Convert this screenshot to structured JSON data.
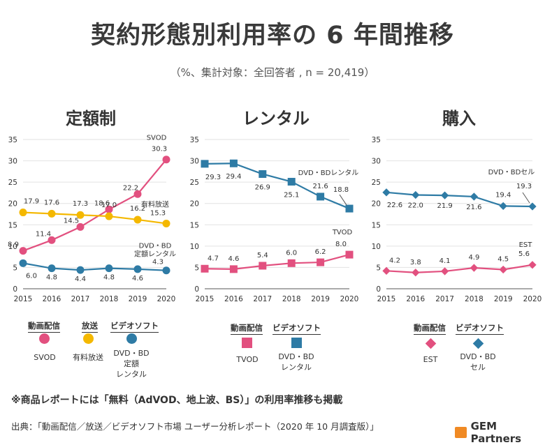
{
  "title": "契約形態別利用率の 6 年間推移",
  "subtitle": "（%、集計対象：全回答者 , n = 20,419）",
  "colors": {
    "pink": "#e2507f",
    "yellow": "#f4b800",
    "blue": "#2e7ba5"
  },
  "chart_data": [
    {
      "type": "line",
      "title": "定額制",
      "categories": [
        "2015",
        "2016",
        "2017",
        "2018",
        "2019",
        "2020"
      ],
      "ylim": [
        0,
        35
      ],
      "yticks": [
        "0",
        "5",
        "10",
        "15",
        "20",
        "25",
        "30",
        "35"
      ],
      "series": [
        {
          "name": "SVOD",
          "color": "#e2507f",
          "marker": "circle",
          "values": [
            8.9,
            11.4,
            14.5,
            18.6,
            22.2,
            30.3
          ],
          "labels": [
            "8.9",
            "11.4",
            "14.5",
            "18.6",
            "22.2",
            "30.3"
          ],
          "end_label": "SVOD"
        },
        {
          "name": "有料放送",
          "color": "#f4b800",
          "marker": "circle",
          "values": [
            17.9,
            17.6,
            17.3,
            17.0,
            16.2,
            15.3
          ],
          "labels": [
            "17.9",
            "17.6",
            "17.3",
            "17.0",
            "16.2",
            "15.3"
          ],
          "end_label": "有料放送"
        },
        {
          "name": "DVD・BD定額レンタル",
          "color": "#2e7ba5",
          "marker": "circle",
          "values": [
            6.0,
            4.8,
            4.4,
            4.8,
            4.6,
            4.3
          ],
          "labels": [
            "6.0",
            "4.8",
            "4.4",
            "4.8",
            "4.6",
            "4.3"
          ],
          "end_label": "DVD・BD 定額レンタル"
        }
      ]
    },
    {
      "type": "line",
      "title": "レンタル",
      "categories": [
        "2015",
        "2016",
        "2017",
        "2018",
        "2019",
        "2020"
      ],
      "ylim": [
        0,
        35
      ],
      "yticks": [
        "0",
        "5",
        "10",
        "15",
        "20",
        "25",
        "30",
        "35"
      ],
      "series": [
        {
          "name": "DVD・BDレンタル",
          "color": "#2e7ba5",
          "marker": "square",
          "values": [
            29.3,
            29.4,
            26.9,
            25.1,
            21.6,
            18.8
          ],
          "labels": [
            "29.3",
            "29.4",
            "26.9",
            "25.1",
            "21.6",
            "18.8"
          ],
          "end_label": "DVD・BDレンタル"
        },
        {
          "name": "TVOD",
          "color": "#e2507f",
          "marker": "square",
          "values": [
            4.7,
            4.6,
            5.4,
            6.0,
            6.2,
            8.0
          ],
          "labels": [
            "4.7",
            "4.6",
            "5.4",
            "6.0",
            "6.2",
            "8.0"
          ],
          "end_label": "TVOD"
        }
      ]
    },
    {
      "type": "line",
      "title": "購入",
      "categories": [
        "2015",
        "2016",
        "2017",
        "2018",
        "2019",
        "2020"
      ],
      "ylim": [
        0,
        35
      ],
      "yticks": [
        "0",
        "5",
        "10",
        "15",
        "20",
        "25",
        "30",
        "35"
      ],
      "series": [
        {
          "name": "DVD・BDセル",
          "color": "#2e7ba5",
          "marker": "diamond",
          "values": [
            22.6,
            22.0,
            21.9,
            21.6,
            19.4,
            19.3
          ],
          "labels": [
            "22.6",
            "22.0",
            "21.9",
            "21.6",
            "19.4",
            "19.3"
          ],
          "end_label": "DVD・BDセル"
        },
        {
          "name": "EST",
          "color": "#e2507f",
          "marker": "diamond",
          "values": [
            4.2,
            3.8,
            4.1,
            4.9,
            4.5,
            5.6
          ],
          "labels": [
            "4.2",
            "3.8",
            "4.1",
            "4.9",
            "4.5",
            "5.6"
          ],
          "end_label": "EST"
        }
      ]
    }
  ],
  "legends": {
    "c1": {
      "cat_a": "動画配信",
      "cat_b": "放送",
      "cat_c": "ビデオソフト",
      "item_a": "SVOD",
      "item_b": "有料放送",
      "item_c": "DVD・BD\n定額\nレンタル"
    },
    "c2": {
      "cat_a": "動画配信",
      "cat_b": "ビデオソフト",
      "item_a": "TVOD",
      "item_b": "DVD・BD\nレンタル"
    },
    "c3": {
      "cat_a": "動画配信",
      "cat_b": "ビデオソフト",
      "item_a": "EST",
      "item_b": "DVD・BD\nセル"
    }
  },
  "note": "※商品レポートには「無料（AdVOD、地上波、BS）」の利用率推移も掲載",
  "source": "出典：「動画配信／放送／ビデオソフト市場 ユーザー分析レポート（2020 年 10 月調査版）」",
  "logo": "GEM Partners"
}
